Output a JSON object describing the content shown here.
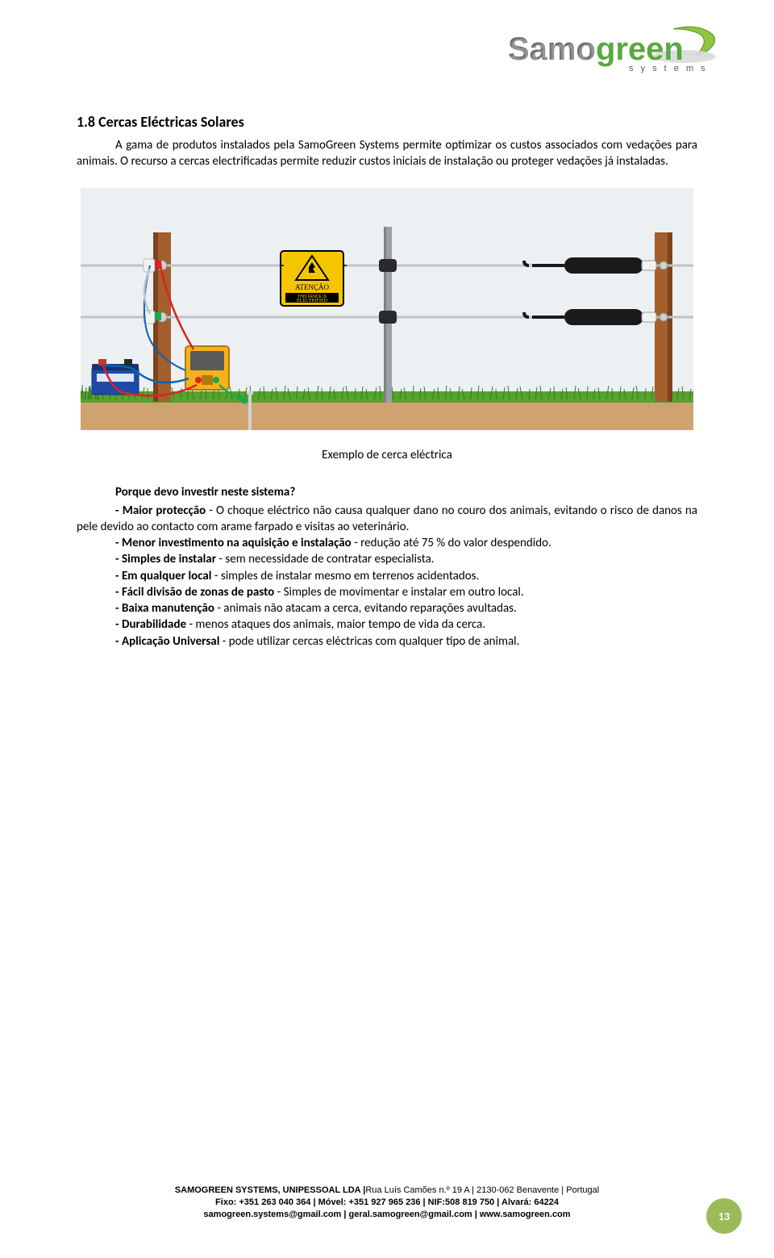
{
  "logo": {
    "text1": "Samo",
    "text2": "green",
    "sub": "s y s t e m s",
    "color_samo": "#6d6d6d",
    "color_green": "#5aa83f",
    "color_leaf": "#8ec641"
  },
  "section": {
    "title": "1.8  Cercas Eléctricas Solares",
    "intro": "A gama de produtos instalados pela SamoGreen Systems permite optimizar os custos associados com vedações para animais. O recurso a cercas electrificadas permite reduzir custos iniciais de instalação ou proteger vedações já instaladas."
  },
  "figure": {
    "caption": "Exemplo de cerca eléctrica",
    "sign_line1": "ATENÇÃO",
    "sign_line2": "THIS FENCE IS",
    "sign_line3": "ELECTRIFIED",
    "colors": {
      "sky": "#ecf0f3",
      "ground": "#cfa26f",
      "grass": "#3a7b1e",
      "grass2": "#56a32f",
      "post_wood": "#a45f2d",
      "post_wood_shadow": "#7c431f",
      "post_metal": "#9aa0a6",
      "wire": "#bfc4c8",
      "handle": "#1a1a1a",
      "insul_white": "#f2f2f2",
      "energizer_body": "#f6b21a",
      "energizer_trim": "#b07a0a",
      "energizer_dark": "#5a5a5a",
      "battery": "#1f4aa8",
      "battery_term": "#c0392b",
      "sign_bg": "#f3c600",
      "sign_border": "#000000",
      "lead_red": "#d22",
      "lead_blue": "#0b63b4",
      "lead_green": "#2a7",
      "clip_green": "#1aa84a",
      "ground_rod": "#cfd3d6"
    }
  },
  "subheading": "Porque devo investir neste sistema?",
  "bullets": [
    {
      "b": "- Maior protecção",
      "t": " - O choque eléctrico não causa qualquer dano no couro dos animais, evitando o risco de danos na pele devido ao contacto com arame farpado e visitas ao veterinário.",
      "justify": true
    },
    {
      "b": "- Menor investimento na aquisição e instalação",
      "t": " - redução até 75 % do valor despendido.",
      "justify": true
    },
    {
      "b": "- Simples de instalar",
      "t": " - sem necessidade de contratar especialista.",
      "justify": false
    },
    {
      "b": "- Em qualquer local",
      "t": " - simples de instalar mesmo em terrenos acidentados.",
      "justify": false
    },
    {
      "b": "- Fácil divisão de zonas de pasto",
      "t": " - Simples de movimentar e instalar em outro local.",
      "justify": false
    },
    {
      "b": "- Baixa manutenção",
      "t": " - animais não atacam a cerca, evitando reparações avultadas.",
      "justify": false
    },
    {
      "b": "- Durabilidade",
      "t": " - menos ataques dos animais, maior tempo de vida da cerca.",
      "justify": false
    },
    {
      "b": "- Aplicação Universal",
      "t": " - pode utilizar cercas eléctricas com qualquer tipo de animal.",
      "justify": false
    }
  ],
  "footer": {
    "line1a": "SAMOGREEN SYSTEMS, UNIPESSOAL LDA |",
    "line1b": "Rua Luís Camões n.º 19 A | 2130-062 Benavente | Portugal",
    "line2": "Fixo: +351 263 040 364 | Móvel: +351 927 965 236 | NIF:508 819 750 | Alvará: 64224",
    "line3": "samogreen.systems@gmail.com | geral.samogreen@gmail.com | www.samogreen.com"
  },
  "page_number": "13"
}
